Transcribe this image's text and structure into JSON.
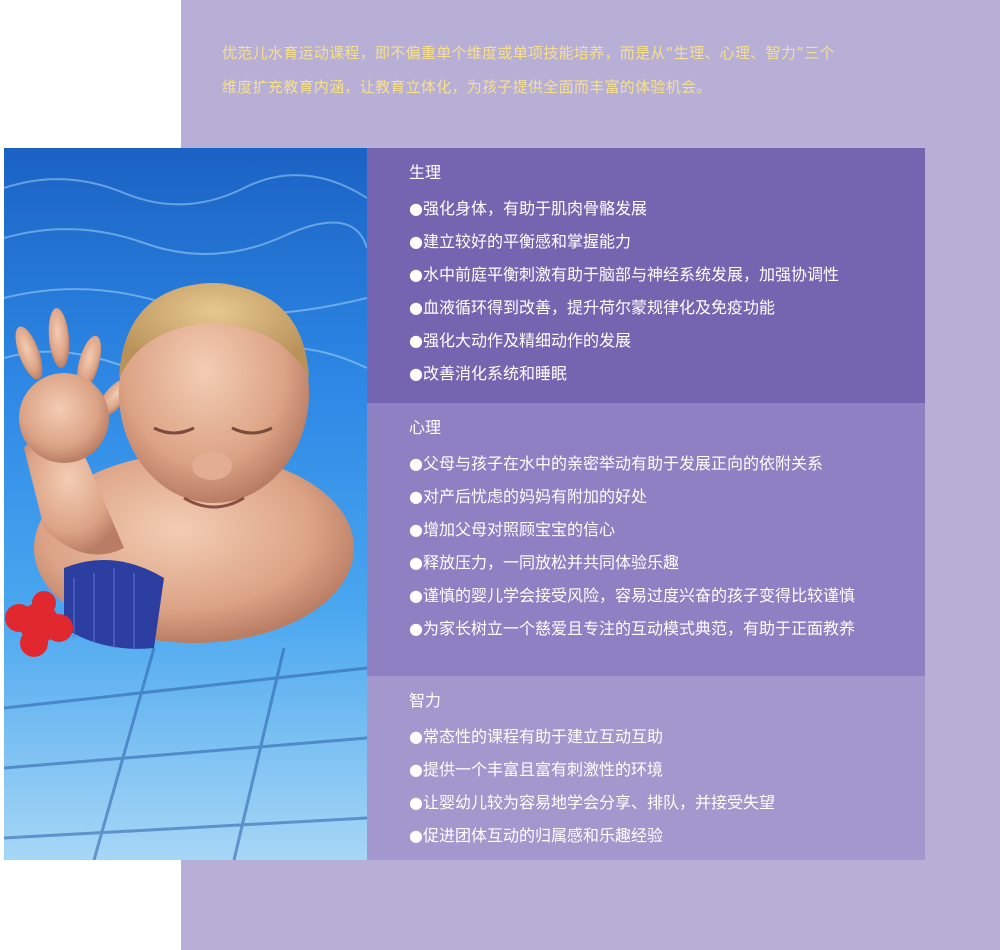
{
  "intro": {
    "line1": "优范儿水育运动课程，即不偏重单个维度或单项技能培养，而是从“生理、心理、智力”三个",
    "line2": "维度扩充教育内涵，让教育立体化，为孩子提供全面而丰富的体验机会。"
  },
  "colors": {
    "background_panel": "#b8afd7",
    "intro_text": "#f6e08c",
    "section_physiology": "#7565b0",
    "section_psychology": "#8e80c2",
    "section_intelligence": "#a398cd"
  },
  "sections": [
    {
      "title": "生理",
      "items": [
        "强化身体，有助于肌肉骨骼发展",
        "建立较好的平衡感和掌握能力",
        "水中前庭平衡刺激有助于脑部与神经系统发展，加强协调性",
        "血液循环得到改善，提升荷尔蒙规律化及免疫功能",
        "强化大动作及精细动作的发展",
        "改善消化系统和睡眠"
      ]
    },
    {
      "title": "心理",
      "items": [
        "父母与孩子在水中的亲密举动有助于发展正向的依附关系",
        "对产后忧虑的妈妈有附加的好处",
        "增加父母对照顾宝宝的信心",
        "释放压力，一同放松并共同体验乐趣",
        "谨慎的婴儿学会接受风险，容易过度兴奋的孩子变得比较谨慎",
        "为家长树立一个慈爱且专注的互动模式典范，有助于正面教养"
      ]
    },
    {
      "title": "智力",
      "items": [
        "常态性的课程有助于建立互动互助",
        "提供一个丰富且富有刺激性的环境",
        "让婴幼儿较为容易地学会分享、排队，并接受失望",
        "促进团体互动的归属感和乐趣经验"
      ]
    }
  ]
}
